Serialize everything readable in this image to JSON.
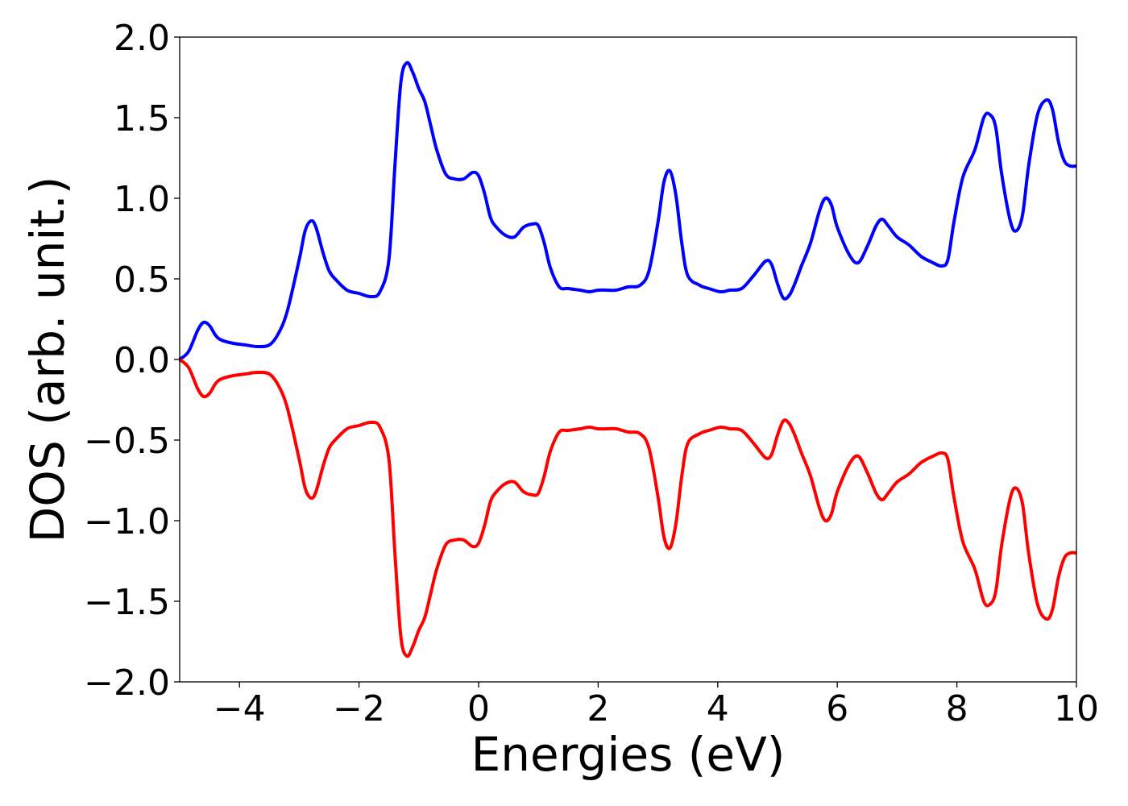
{
  "chart_data": {
    "type": "line",
    "title": "",
    "xlabel": "Energies (eV)",
    "ylabel": "DOS (arb. unit.)",
    "xlim": [
      -5,
      10
    ],
    "ylim": [
      -2.0,
      2.0
    ],
    "xticks": [
      -4,
      -2,
      0,
      2,
      4,
      6,
      8,
      10
    ],
    "xtick_labels": [
      "−4",
      "−2",
      "0",
      "2",
      "4",
      "6",
      "8",
      "10"
    ],
    "yticks": [
      2.0,
      1.5,
      1.0,
      0.5,
      0.0,
      -0.5,
      -1.0,
      -1.5,
      -2.0
    ],
    "ytick_labels": [
      "2.0",
      "1.5",
      "1.0",
      "0.5",
      "0.0",
      "−0.5",
      "−1.0",
      "−1.5",
      "−2.0"
    ],
    "grid": false,
    "legend": "none",
    "series": [
      {
        "color": "#0000ff",
        "x": [
          -5.0,
          -4.85,
          -4.7,
          -4.6,
          -4.5,
          -4.4,
          -4.3,
          -4.1,
          -3.9,
          -3.7,
          -3.5,
          -3.35,
          -3.2,
          -3.0,
          -2.9,
          -2.8,
          -2.72,
          -2.6,
          -2.5,
          -2.4,
          -2.2,
          -2.0,
          -1.8,
          -1.65,
          -1.5,
          -1.4,
          -1.3,
          -1.2,
          -1.1,
          -1.0,
          -0.9,
          -0.8,
          -0.7,
          -0.55,
          -0.4,
          -0.25,
          -0.1,
          0.0,
          0.1,
          0.2,
          0.3,
          0.45,
          0.6,
          0.75,
          0.9,
          1.0,
          1.1,
          1.2,
          1.35,
          1.5,
          1.7,
          1.85,
          2.0,
          2.15,
          2.3,
          2.5,
          2.7,
          2.85,
          3.0,
          3.1,
          3.2,
          3.3,
          3.4,
          3.5,
          3.7,
          3.85,
          4.05,
          4.2,
          4.4,
          4.6,
          4.8,
          4.9,
          5.0,
          5.1,
          5.2,
          5.3,
          5.4,
          5.55,
          5.7,
          5.8,
          5.9,
          6.0,
          6.2,
          6.35,
          6.5,
          6.65,
          6.75,
          6.85,
          7.0,
          7.2,
          7.4,
          7.6,
          7.75,
          7.85,
          7.95,
          8.1,
          8.3,
          8.45,
          8.55,
          8.65,
          8.75,
          8.9,
          9.0,
          9.1,
          9.2,
          9.35,
          9.5,
          9.6,
          9.7,
          9.8,
          9.9,
          10.0
        ],
        "y": [
          0.0,
          0.05,
          0.18,
          0.23,
          0.21,
          0.15,
          0.12,
          0.1,
          0.09,
          0.08,
          0.09,
          0.16,
          0.3,
          0.62,
          0.8,
          0.86,
          0.82,
          0.66,
          0.55,
          0.5,
          0.43,
          0.41,
          0.39,
          0.42,
          0.62,
          1.2,
          1.72,
          1.84,
          1.78,
          1.68,
          1.6,
          1.45,
          1.3,
          1.15,
          1.12,
          1.12,
          1.16,
          1.14,
          1.03,
          0.88,
          0.82,
          0.77,
          0.76,
          0.82,
          0.84,
          0.83,
          0.72,
          0.57,
          0.45,
          0.44,
          0.43,
          0.42,
          0.43,
          0.43,
          0.43,
          0.45,
          0.46,
          0.55,
          0.85,
          1.1,
          1.17,
          1.02,
          0.72,
          0.52,
          0.46,
          0.44,
          0.42,
          0.43,
          0.44,
          0.52,
          0.61,
          0.59,
          0.47,
          0.38,
          0.4,
          0.48,
          0.58,
          0.72,
          0.92,
          1.0,
          0.96,
          0.82,
          0.65,
          0.6,
          0.7,
          0.83,
          0.87,
          0.83,
          0.76,
          0.71,
          0.64,
          0.6,
          0.58,
          0.62,
          0.85,
          1.13,
          1.3,
          1.5,
          1.52,
          1.44,
          1.15,
          0.85,
          0.8,
          0.9,
          1.2,
          1.52,
          1.61,
          1.55,
          1.35,
          1.23,
          1.2,
          1.2
        ]
      },
      {
        "color": "#ff0000",
        "x": [
          -5.0,
          -4.85,
          -4.7,
          -4.6,
          -4.5,
          -4.4,
          -4.3,
          -4.1,
          -3.9,
          -3.7,
          -3.5,
          -3.35,
          -3.2,
          -3.0,
          -2.9,
          -2.8,
          -2.72,
          -2.6,
          -2.5,
          -2.4,
          -2.2,
          -2.0,
          -1.8,
          -1.65,
          -1.5,
          -1.4,
          -1.3,
          -1.2,
          -1.1,
          -1.0,
          -0.9,
          -0.8,
          -0.7,
          -0.55,
          -0.4,
          -0.25,
          -0.1,
          0.0,
          0.1,
          0.2,
          0.3,
          0.45,
          0.6,
          0.75,
          0.9,
          1.0,
          1.1,
          1.2,
          1.35,
          1.5,
          1.7,
          1.85,
          2.0,
          2.15,
          2.3,
          2.5,
          2.7,
          2.85,
          3.0,
          3.1,
          3.2,
          3.3,
          3.4,
          3.5,
          3.7,
          3.85,
          4.05,
          4.2,
          4.4,
          4.6,
          4.8,
          4.9,
          5.0,
          5.1,
          5.2,
          5.3,
          5.4,
          5.55,
          5.7,
          5.8,
          5.9,
          6.0,
          6.2,
          6.35,
          6.5,
          6.65,
          6.75,
          6.85,
          7.0,
          7.2,
          7.4,
          7.6,
          7.75,
          7.85,
          7.95,
          8.1,
          8.3,
          8.45,
          8.55,
          8.65,
          8.75,
          8.9,
          9.0,
          9.1,
          9.2,
          9.35,
          9.5,
          9.6,
          9.7,
          9.8,
          9.9,
          10.0
        ],
        "y": [
          0.0,
          -0.05,
          -0.18,
          -0.23,
          -0.21,
          -0.15,
          -0.12,
          -0.1,
          -0.09,
          -0.08,
          -0.09,
          -0.16,
          -0.3,
          -0.62,
          -0.8,
          -0.86,
          -0.82,
          -0.66,
          -0.55,
          -0.5,
          -0.43,
          -0.41,
          -0.39,
          -0.42,
          -0.62,
          -1.2,
          -1.72,
          -1.84,
          -1.78,
          -1.68,
          -1.6,
          -1.45,
          -1.3,
          -1.15,
          -1.12,
          -1.12,
          -1.16,
          -1.14,
          -1.03,
          -0.88,
          -0.82,
          -0.77,
          -0.76,
          -0.82,
          -0.84,
          -0.83,
          -0.72,
          -0.57,
          -0.45,
          -0.44,
          -0.43,
          -0.42,
          -0.43,
          -0.43,
          -0.43,
          -0.45,
          -0.46,
          -0.55,
          -0.85,
          -1.1,
          -1.17,
          -1.02,
          -0.72,
          -0.52,
          -0.46,
          -0.44,
          -0.42,
          -0.43,
          -0.44,
          -0.52,
          -0.61,
          -0.59,
          -0.47,
          -0.38,
          -0.4,
          -0.48,
          -0.58,
          -0.72,
          -0.92,
          -1.0,
          -0.96,
          -0.82,
          -0.65,
          -0.6,
          -0.7,
          -0.83,
          -0.87,
          -0.83,
          -0.76,
          -0.71,
          -0.64,
          -0.6,
          -0.58,
          -0.62,
          -0.85,
          -1.13,
          -1.3,
          -1.5,
          -1.52,
          -1.44,
          -1.15,
          -0.85,
          -0.8,
          -0.9,
          -1.2,
          -1.52,
          -1.61,
          -1.55,
          -1.35,
          -1.23,
          -1.2,
          -1.2
        ]
      }
    ]
  }
}
